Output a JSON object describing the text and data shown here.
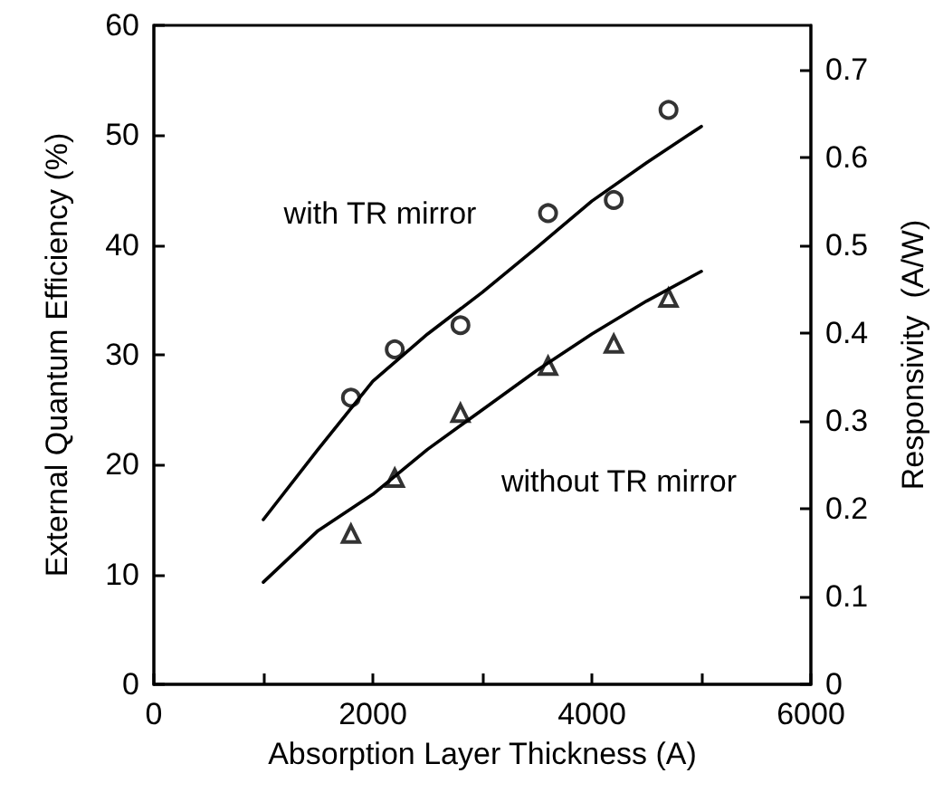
{
  "chart_data": {
    "type": "scatter",
    "xlabel": "Absorption Layer Thickness (A)",
    "ylabel": "External Quantum Efficiency (%)",
    "y2label": "Responsivity  (A/W)",
    "xlim": [
      0,
      6000
    ],
    "xticks": [
      0,
      {
        "value": 1000,
        "label": null
      },
      2000,
      {
        "value": 3000,
        "label": null
      },
      4000,
      {
        "value": 5000,
        "label": null
      },
      6000
    ],
    "ylim": [
      0,
      60
    ],
    "yticks": [
      0,
      10,
      20,
      30,
      40,
      50,
      60
    ],
    "y2lim": [
      0,
      0.75
    ],
    "y2ticks": [
      0,
      0.1,
      0.2,
      0.3,
      0.4,
      0.5,
      0.6,
      0.7
    ],
    "grid": false,
    "series": [
      {
        "marker": "circle",
        "color": "#000000",
        "x": [
          1800,
          2200,
          2800,
          3600,
          4200,
          4700
        ],
        "values": [
          26.1,
          30.5,
          32.7,
          42.9,
          44.1,
          52.3
        ]
      },
      {
        "marker": "triangle",
        "color": "#000000",
        "x": [
          1800,
          2200,
          2800,
          3600,
          4200,
          4700
        ],
        "values": [
          13.7,
          18.8,
          24.7,
          29.0,
          31.0,
          35.2
        ]
      },
      {
        "type": "line",
        "marker": "none",
        "color": "#000000",
        "x": [
          1000,
          1500,
          2000,
          2500,
          3000,
          3500,
          4000,
          4500,
          5000
        ],
        "values": [
          15.0,
          21.4,
          27.6,
          31.9,
          35.7,
          39.8,
          44.0,
          47.5,
          50.8
        ]
      },
      {
        "type": "line",
        "marker": "none",
        "color": "#000000",
        "x": [
          1000,
          1500,
          2000,
          2500,
          3000,
          3500,
          4000,
          4500,
          5000
        ],
        "values": [
          9.3,
          14.0,
          17.3,
          21.4,
          25.0,
          28.6,
          31.9,
          34.9,
          37.6
        ]
      }
    ],
    "annotations": [
      "with TR mirror",
      "without TR mirror"
    ]
  }
}
